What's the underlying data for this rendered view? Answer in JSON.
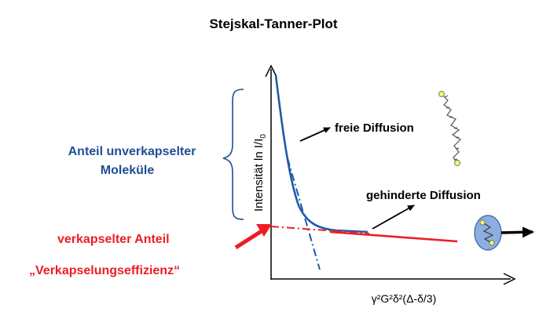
{
  "title": "Stejskal-Tanner-Plot",
  "labels": {
    "unencapsulated_line1": "Anteil unverkapselter",
    "unencapsulated_line2": "Moleküle",
    "encapsulated": "verkapselter Anteil",
    "efficiency": "„Verkapselungseffizienz“",
    "free_diffusion": "freie Diffusion",
    "hindered_diffusion": "gehinderte Diffusion"
  },
  "axes": {
    "y_label_main": "Intensität ln I/I",
    "y_label_sub": "0",
    "x_label": "γ²G²δ²(Δ-δ/3)"
  },
  "colors": {
    "blue_text": "#1f4e96",
    "blue_curve": "#1f5aa8",
    "red": "#ee1c24",
    "black": "#000000",
    "molecule_fill": "#8eaee0",
    "molecule_stroke": "#4a6fb0",
    "dot_yellow": "#ffff66"
  },
  "icons": {
    "free_walk": "random-walk-icon",
    "trapped": "encapsulated-molecule-icon"
  }
}
